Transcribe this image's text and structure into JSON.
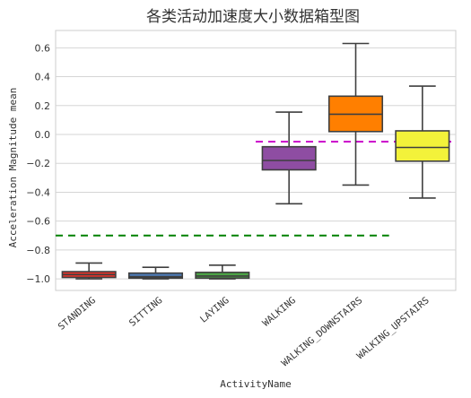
{
  "chart_data": {
    "type": "box",
    "title": "各类活动加速度大小数据箱型图",
    "xlabel": "ActivityName",
    "ylabel": "Acceleration Magnitude mean",
    "ylim": [
      -1.08,
      0.72
    ],
    "yticks": [
      0.6,
      0.4,
      0.2,
      0.0,
      -0.2,
      -0.4,
      -0.6,
      -0.8,
      -1.0
    ],
    "ytick_labels": [
      "0.6",
      "0.4",
      "0.2",
      "0.0",
      "−0.2",
      "−0.4",
      "−0.6",
      "−0.8",
      "−1.0"
    ],
    "grid": "horizontal",
    "categories": [
      "STANDING",
      "SITTING",
      "LAYING",
      "WALKING",
      "WALKING_DOWNSTAIRS",
      "WALKING_UPSTAIRS"
    ],
    "boxes": [
      {
        "category": "STANDING",
        "whisker_low": -1.0,
        "q1": -0.99,
        "median": -0.97,
        "q3": -0.95,
        "whisker_high": -0.89,
        "color": "#e8332a"
      },
      {
        "category": "SITTING",
        "whisker_low": -1.0,
        "q1": -0.995,
        "median": -0.985,
        "q3": -0.96,
        "whisker_high": -0.92,
        "color": "#4c78b0"
      },
      {
        "category": "LAYING",
        "whisker_low": -1.0,
        "q1": -0.995,
        "median": -0.98,
        "q3": -0.955,
        "whisker_high": -0.905,
        "color": "#4ba345"
      },
      {
        "category": "WALKING",
        "whisker_low": -0.48,
        "q1": -0.245,
        "median": -0.18,
        "q3": -0.085,
        "whisker_high": 0.155,
        "color": "#8e4da2"
      },
      {
        "category": "WALKING_DOWNSTAIRS",
        "whisker_low": -0.35,
        "q1": 0.02,
        "median": 0.14,
        "q3": 0.265,
        "whisker_high": 0.63,
        "color": "#ff7f00"
      },
      {
        "category": "WALKING_UPSTAIRS",
        "whisker_low": -0.44,
        "q1": -0.185,
        "median": -0.09,
        "q3": 0.025,
        "whisker_high": 0.335,
        "color": "#f3f23a"
      }
    ],
    "reference_lines": [
      {
        "y": -0.7,
        "x_from": -0.5,
        "x_to": 4.5,
        "color": "#008000",
        "style": "dashed"
      },
      {
        "y": -0.05,
        "x_from": 2.5,
        "x_to": 5.5,
        "color": "#cc00cc",
        "style": "dashed"
      }
    ]
  }
}
